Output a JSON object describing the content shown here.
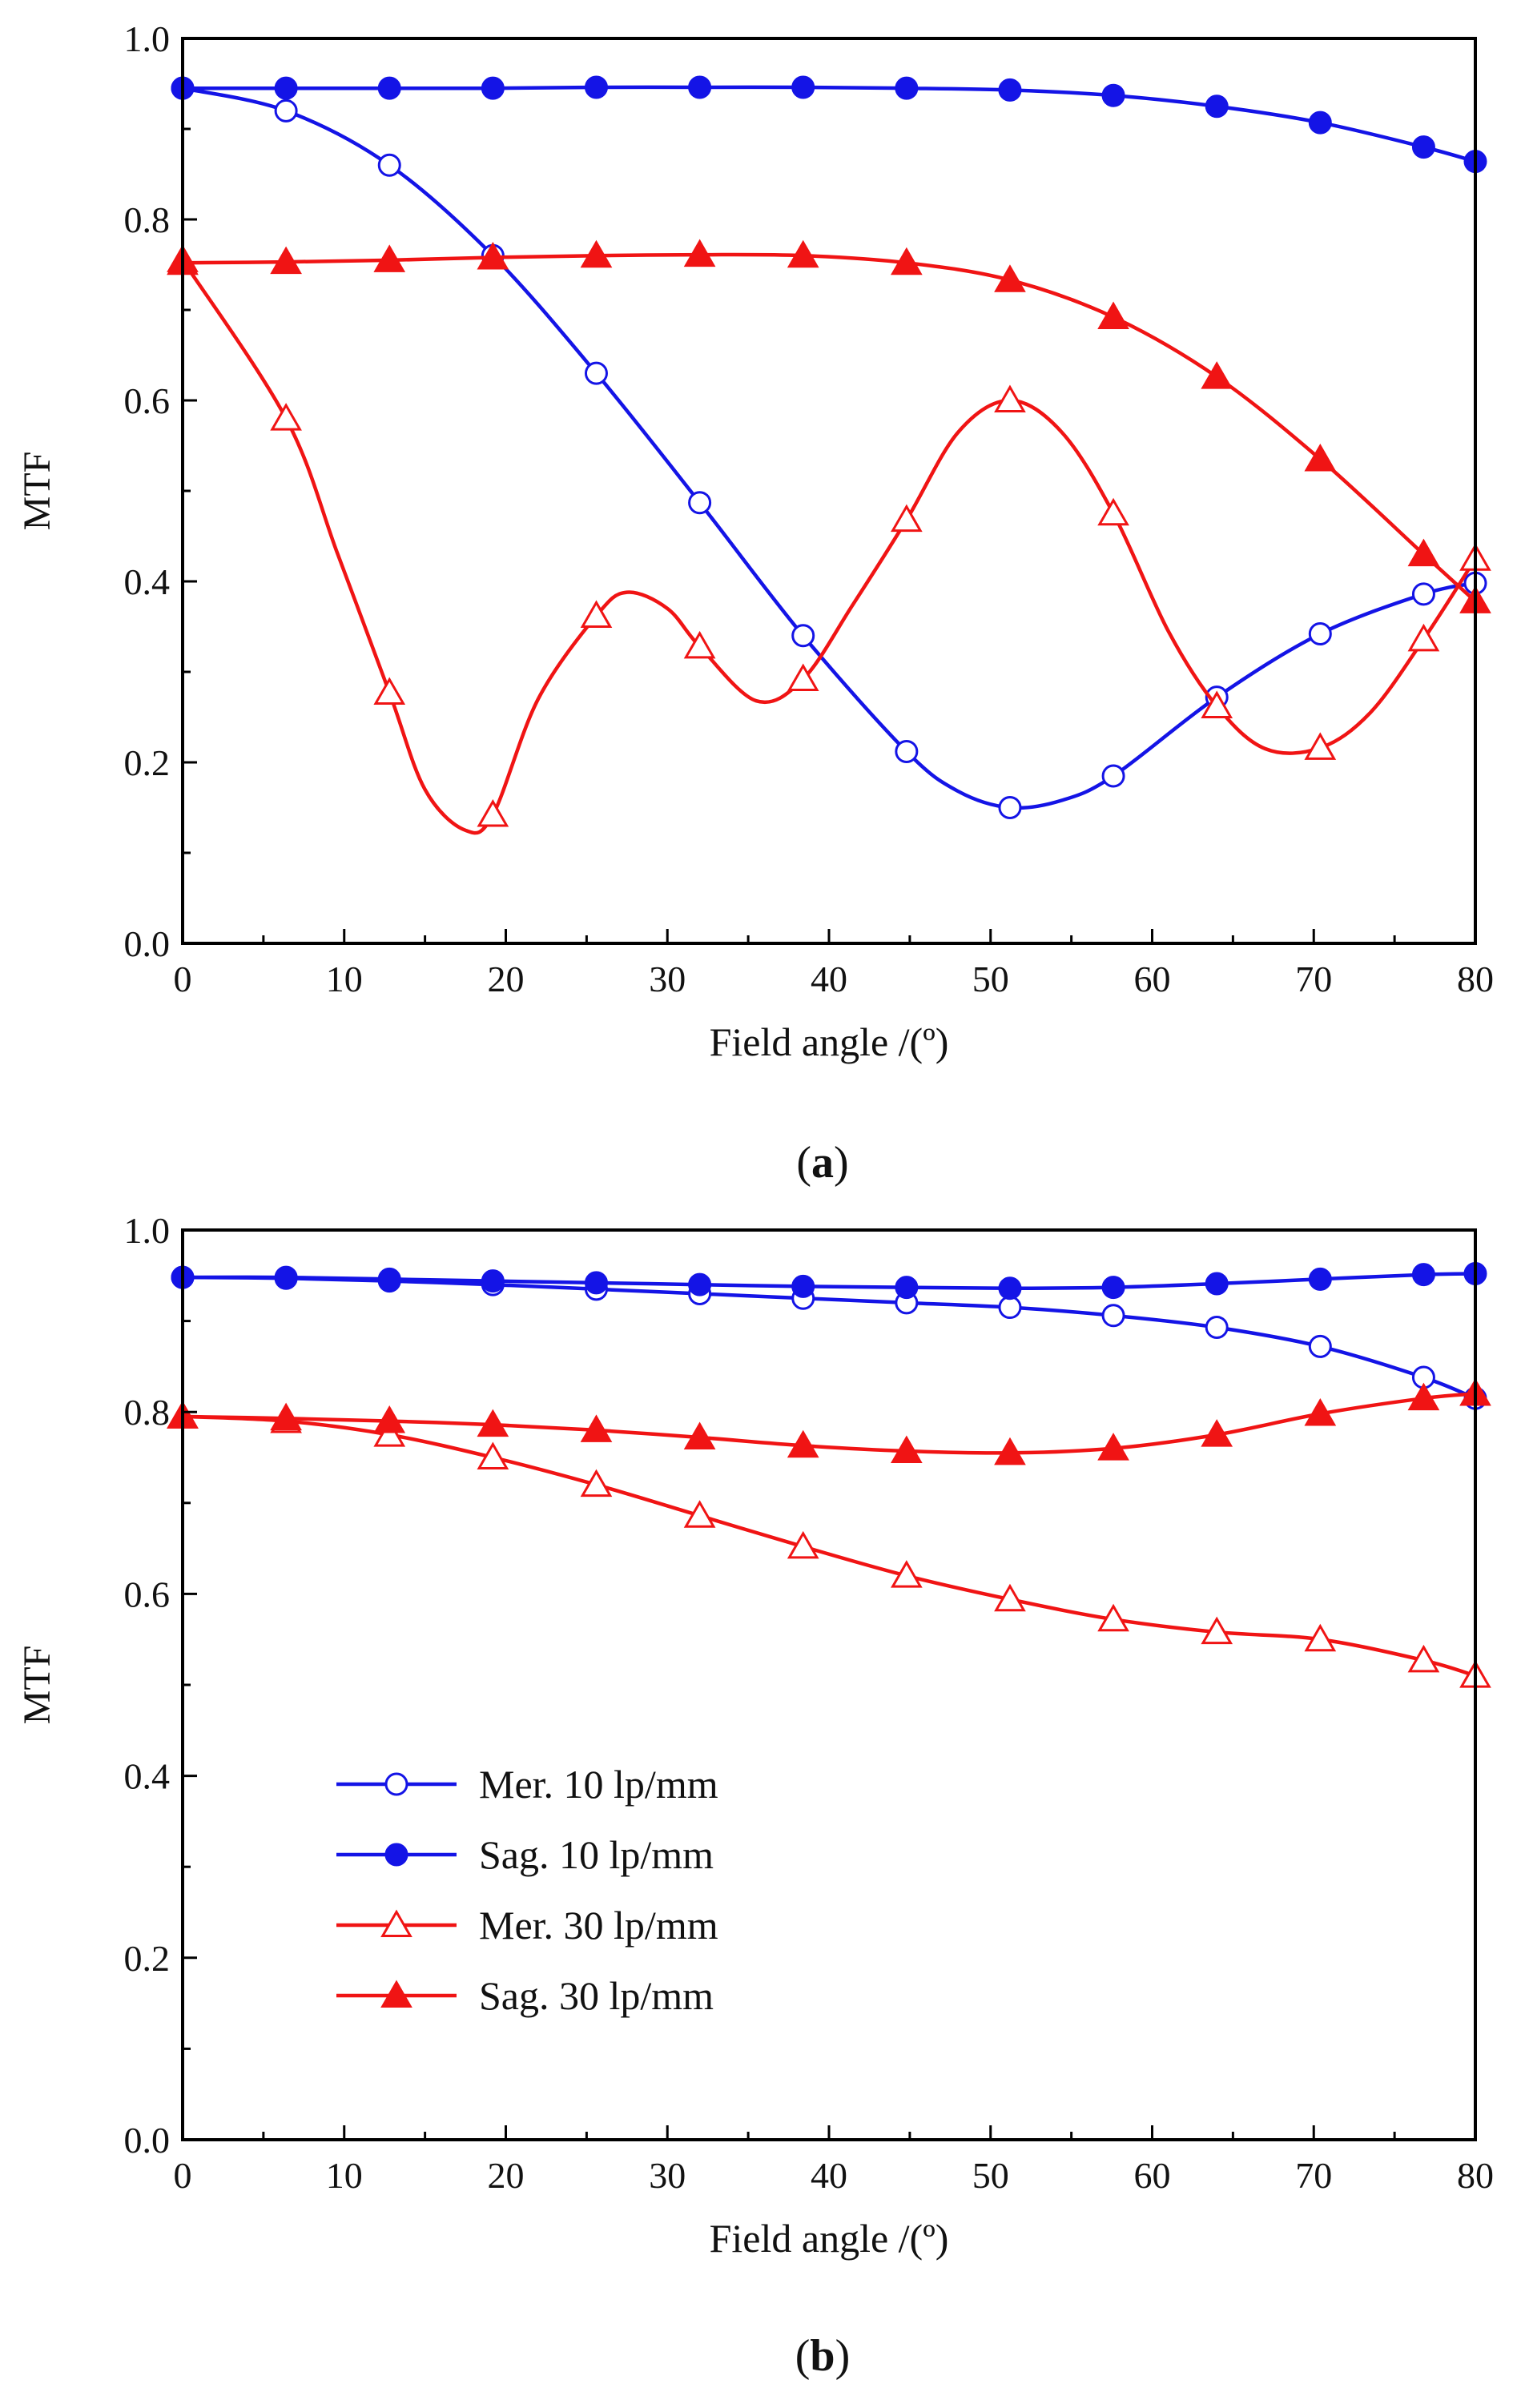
{
  "colors": {
    "blue": "#1414e6",
    "red": "#f01414",
    "axis": "#000000"
  },
  "chart_data": [
    {
      "type": "line",
      "panel_label": "a",
      "xlabel": "Field angle /(º)",
      "ylabel": "MTF",
      "xlim": [
        0,
        80
      ],
      "ylim": [
        0,
        1
      ],
      "xticks": [
        "0",
        "10",
        "20",
        "30",
        "40",
        "50",
        "60",
        "70",
        "80"
      ],
      "yticks": [
        "0.0",
        "0.2",
        "0.4",
        "0.6",
        "0.8",
        "1.0"
      ],
      "legend": null,
      "series": [
        {
          "name": "Mer. 10 lp/mm",
          "color": "blue",
          "marker": "circle-open",
          "x": [
            0,
            6.4,
            12.8,
            19.2,
            25.6,
            32,
            38.4,
            44.8,
            51.2,
            57.6,
            64,
            70.4,
            76.8,
            80
          ],
          "y": [
            0.945,
            0.92,
            0.86,
            0.76,
            0.63,
            0.487,
            0.34,
            0.212,
            0.15,
            0.185,
            0.272,
            0.342,
            0.386,
            0.398
          ],
          "curve_x": [
            0,
            6.4,
            12.8,
            19.2,
            25.6,
            32,
            38.4,
            44.8,
            48,
            51.2,
            54.4,
            57.6,
            64,
            70.4,
            76.8,
            80
          ],
          "curve_y": [
            0.945,
            0.92,
            0.86,
            0.76,
            0.63,
            0.487,
            0.34,
            0.212,
            0.168,
            0.15,
            0.158,
            0.185,
            0.272,
            0.342,
            0.386,
            0.398
          ]
        },
        {
          "name": "Sag. 10 lp/mm",
          "color": "blue",
          "marker": "circle-filled",
          "x": [
            0,
            6.4,
            12.8,
            19.2,
            25.6,
            32,
            38.4,
            44.8,
            51.2,
            57.6,
            64,
            70.4,
            76.8,
            80
          ],
          "y": [
            0.945,
            0.945,
            0.945,
            0.945,
            0.946,
            0.946,
            0.946,
            0.945,
            0.943,
            0.937,
            0.925,
            0.907,
            0.88,
            0.864
          ],
          "curve_x": [
            0,
            6.4,
            12.8,
            19.2,
            25.6,
            32,
            38.4,
            44.8,
            51.2,
            57.6,
            64,
            70.4,
            76.8,
            80
          ],
          "curve_y": [
            0.945,
            0.945,
            0.945,
            0.945,
            0.946,
            0.946,
            0.946,
            0.945,
            0.943,
            0.937,
            0.925,
            0.907,
            0.88,
            0.864
          ]
        },
        {
          "name": "Mer. 30 lp/mm",
          "color": "red",
          "marker": "triangle-open",
          "x": [
            0,
            6.4,
            12.8,
            19.2,
            25.6,
            32,
            38.4,
            44.8,
            51.2,
            57.6,
            64,
            70.4,
            76.8,
            80
          ],
          "y": [
            0.755,
            0.58,
            0.277,
            0.142,
            0.362,
            0.328,
            0.292,
            0.468,
            0.6,
            0.475,
            0.262,
            0.216,
            0.336,
            0.425
          ],
          "curve_x": [
            0,
            6.4,
            9.6,
            12.8,
            15,
            17.5,
            19.2,
            22,
            25.6,
            27.5,
            30,
            32,
            35.5,
            38.4,
            41.5,
            44.8,
            48,
            51.2,
            54.4,
            57.6,
            61,
            64,
            67,
            70.4,
            73.5,
            76.8,
            80
          ],
          "curve_y": [
            0.755,
            0.58,
            0.43,
            0.277,
            0.17,
            0.125,
            0.142,
            0.27,
            0.362,
            0.388,
            0.37,
            0.328,
            0.268,
            0.292,
            0.375,
            0.468,
            0.565,
            0.6,
            0.565,
            0.475,
            0.345,
            0.262,
            0.215,
            0.216,
            0.255,
            0.336,
            0.425
          ]
        },
        {
          "name": "Sag. 30 lp/mm",
          "color": "red",
          "marker": "triangle-filled",
          "x": [
            0,
            6.4,
            12.8,
            19.2,
            25.6,
            32,
            38.4,
            44.8,
            51.2,
            57.6,
            64,
            70.4,
            76.8,
            80
          ],
          "y": [
            0.752,
            0.753,
            0.755,
            0.758,
            0.76,
            0.761,
            0.76,
            0.752,
            0.733,
            0.692,
            0.626,
            0.535,
            0.43,
            0.378
          ],
          "curve_x": [
            0,
            6.4,
            12.8,
            19.2,
            25.6,
            32,
            38.4,
            44.8,
            51.2,
            57.6,
            64,
            70.4,
            76.8,
            80
          ],
          "curve_y": [
            0.752,
            0.753,
            0.755,
            0.758,
            0.76,
            0.761,
            0.76,
            0.752,
            0.733,
            0.692,
            0.626,
            0.535,
            0.43,
            0.378
          ]
        }
      ]
    },
    {
      "type": "line",
      "panel_label": "b",
      "xlabel": "Field angle /(º)",
      "ylabel": "MTF",
      "xlim": [
        0,
        80
      ],
      "ylim": [
        0,
        1
      ],
      "xticks": [
        "0",
        "10",
        "20",
        "30",
        "40",
        "50",
        "60",
        "70",
        "80"
      ],
      "yticks": [
        "0.0",
        "0.2",
        "0.4",
        "0.6",
        "0.8",
        "1.0"
      ],
      "legend": "middle-left",
      "series": [
        {
          "name": "Mer. 10 lp/mm",
          "color": "blue",
          "marker": "circle-open",
          "x": [
            0,
            6.4,
            12.8,
            19.2,
            25.6,
            32,
            38.4,
            44.8,
            51.2,
            57.6,
            64,
            70.4,
            76.8,
            80
          ],
          "y": [
            0.948,
            0.947,
            0.944,
            0.94,
            0.935,
            0.93,
            0.925,
            0.92,
            0.915,
            0.906,
            0.893,
            0.872,
            0.838,
            0.815
          ],
          "curve_x": [
            0,
            6.4,
            12.8,
            19.2,
            25.6,
            32,
            38.4,
            44.8,
            51.2,
            57.6,
            64,
            70.4,
            76.8,
            80
          ],
          "curve_y": [
            0.948,
            0.947,
            0.944,
            0.94,
            0.935,
            0.93,
            0.925,
            0.92,
            0.915,
            0.906,
            0.893,
            0.872,
            0.838,
            0.815
          ]
        },
        {
          "name": "Sag. 10 lp/mm",
          "color": "blue",
          "marker": "circle-filled",
          "x": [
            0,
            6.4,
            12.8,
            19.2,
            25.6,
            32,
            38.4,
            44.8,
            51.2,
            57.6,
            64,
            70.4,
            76.8,
            80
          ],
          "y": [
            0.948,
            0.948,
            0.946,
            0.944,
            0.942,
            0.94,
            0.938,
            0.937,
            0.936,
            0.937,
            0.941,
            0.946,
            0.951,
            0.952
          ],
          "curve_x": [
            0,
            6.4,
            12.8,
            19.2,
            25.6,
            32,
            38.4,
            44.8,
            51.2,
            57.6,
            64,
            70.4,
            76.8,
            80
          ],
          "curve_y": [
            0.948,
            0.948,
            0.946,
            0.944,
            0.942,
            0.94,
            0.938,
            0.937,
            0.936,
            0.937,
            0.941,
            0.946,
            0.951,
            0.952
          ]
        },
        {
          "name": "Mer. 30 lp/mm",
          "color": "red",
          "marker": "triangle-open",
          "x": [
            0,
            6.4,
            12.8,
            19.2,
            25.6,
            32,
            38.4,
            44.8,
            51.2,
            57.6,
            64,
            70.4,
            76.8,
            80
          ],
          "y": [
            0.795,
            0.79,
            0.775,
            0.75,
            0.72,
            0.686,
            0.652,
            0.62,
            0.594,
            0.572,
            0.558,
            0.55,
            0.527,
            0.51
          ],
          "curve_x": [
            0,
            6.4,
            12.8,
            19.2,
            25.6,
            32,
            38.4,
            44.8,
            51.2,
            57.6,
            64,
            70.4,
            76.8,
            80
          ],
          "curve_y": [
            0.795,
            0.79,
            0.775,
            0.75,
            0.72,
            0.686,
            0.652,
            0.62,
            0.594,
            0.572,
            0.558,
            0.55,
            0.527,
            0.51
          ]
        },
        {
          "name": "Sag. 30 lp/mm",
          "color": "red",
          "marker": "triangle-filled",
          "x": [
            0,
            6.4,
            12.8,
            19.2,
            25.6,
            32,
            38.4,
            44.8,
            51.2,
            57.6,
            64,
            70.4,
            76.8,
            80
          ],
          "y": [
            0.795,
            0.793,
            0.79,
            0.786,
            0.78,
            0.772,
            0.763,
            0.757,
            0.755,
            0.76,
            0.775,
            0.798,
            0.815,
            0.82
          ],
          "curve_x": [
            0,
            6.4,
            12.8,
            19.2,
            25.6,
            32,
            38.4,
            44.8,
            51.2,
            57.6,
            64,
            70.4,
            76.8,
            80
          ],
          "curve_y": [
            0.795,
            0.793,
            0.79,
            0.786,
            0.78,
            0.772,
            0.763,
            0.757,
            0.755,
            0.76,
            0.775,
            0.798,
            0.815,
            0.82
          ]
        }
      ]
    }
  ]
}
